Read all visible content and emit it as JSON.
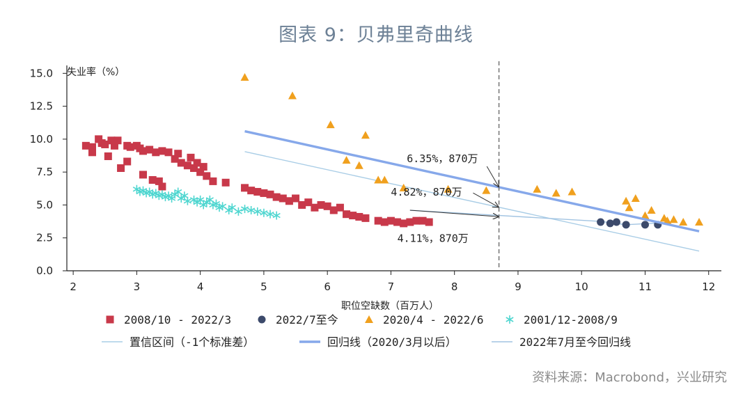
{
  "title": "图表 9：贝弗里奇曲线",
  "source": "资料来源：Macrobond，兴业研究",
  "colors": {
    "series_2008": "#c8394a",
    "series_2022_7": "#3c4a6b",
    "series_2020": "#f0a01e",
    "series_2001": "#4fd6d0",
    "regression": "#86a8ea",
    "conf_band": "#a9cde6",
    "current": "#a2c4e2",
    "vline": "#7a7a7a"
  },
  "chart_data": {
    "type": "scatter",
    "title": "图表 9：贝弗里奇曲线",
    "xlabel": "职位空缺数（百万人）",
    "ylabel": "失业率（%）",
    "xlim": [
      1.9,
      12.2
    ],
    "ylim": [
      0,
      15.6
    ],
    "xticks": [
      2,
      3,
      4,
      5,
      6,
      7,
      8,
      9,
      10,
      11,
      12
    ],
    "yticks": [
      0.0,
      2.5,
      5.0,
      7.5,
      10.0,
      12.5,
      15.0
    ],
    "xtick_labels": [
      "2",
      "3",
      "4",
      "5",
      "6",
      "7",
      "8",
      "9",
      "10",
      "11",
      "12"
    ],
    "ytick_labels": [
      "0.0",
      "2.5",
      "5.0",
      "7.5",
      "10.0",
      "12.5",
      "15.0"
    ],
    "grid": false,
    "legend_position": "bottom",
    "series": [
      {
        "name": "2008/10 - 2022/3",
        "marker": "square",
        "points": [
          [
            2.2,
            9.5
          ],
          [
            2.3,
            9.4
          ],
          [
            2.3,
            9.0
          ],
          [
            2.4,
            10.0
          ],
          [
            2.45,
            9.7
          ],
          [
            2.5,
            9.6
          ],
          [
            2.55,
            8.7
          ],
          [
            2.6,
            9.9
          ],
          [
            2.65,
            9.5
          ],
          [
            2.7,
            9.9
          ],
          [
            2.75,
            7.8
          ],
          [
            2.85,
            8.3
          ],
          [
            2.85,
            9.5
          ],
          [
            2.9,
            9.4
          ],
          [
            3.0,
            9.5
          ],
          [
            3.05,
            9.3
          ],
          [
            3.1,
            9.1
          ],
          [
            3.1,
            7.3
          ],
          [
            3.2,
            9.2
          ],
          [
            3.25,
            6.9
          ],
          [
            3.3,
            9.0
          ],
          [
            3.35,
            6.8
          ],
          [
            3.4,
            9.1
          ],
          [
            3.4,
            6.4
          ],
          [
            3.5,
            9.0
          ],
          [
            3.6,
            8.5
          ],
          [
            3.65,
            8.9
          ],
          [
            3.7,
            8.2
          ],
          [
            3.8,
            8.0
          ],
          [
            3.85,
            8.6
          ],
          [
            3.9,
            7.8
          ],
          [
            3.95,
            8.2
          ],
          [
            4.0,
            7.5
          ],
          [
            4.05,
            7.9
          ],
          [
            4.1,
            7.2
          ],
          [
            4.2,
            6.8
          ],
          [
            4.4,
            6.7
          ],
          [
            4.7,
            6.3
          ],
          [
            4.8,
            6.1
          ],
          [
            4.9,
            6.0
          ],
          [
            5.0,
            5.9
          ],
          [
            5.1,
            5.8
          ],
          [
            5.2,
            5.6
          ],
          [
            5.3,
            5.5
          ],
          [
            5.4,
            5.3
          ],
          [
            5.5,
            5.5
          ],
          [
            5.6,
            5.0
          ],
          [
            5.7,
            5.2
          ],
          [
            5.8,
            4.8
          ],
          [
            5.9,
            5.0
          ],
          [
            6.0,
            4.9
          ],
          [
            6.1,
            4.6
          ],
          [
            6.2,
            4.8
          ],
          [
            6.3,
            4.3
          ],
          [
            6.4,
            4.2
          ],
          [
            6.5,
            4.1
          ],
          [
            6.6,
            4.0
          ],
          [
            6.8,
            3.8
          ],
          [
            6.9,
            3.7
          ],
          [
            7.0,
            3.8
          ],
          [
            7.1,
            3.7
          ],
          [
            7.2,
            3.6
          ],
          [
            7.3,
            3.7
          ],
          [
            7.4,
            3.8
          ],
          [
            7.5,
            3.8
          ],
          [
            7.6,
            3.7
          ]
        ]
      },
      {
        "name": "2022/7至今",
        "marker": "circle",
        "points": [
          [
            10.3,
            3.7
          ],
          [
            10.45,
            3.6
          ],
          [
            10.55,
            3.7
          ],
          [
            10.7,
            3.5
          ],
          [
            11.0,
            3.5
          ],
          [
            11.2,
            3.5
          ]
        ]
      },
      {
        "name": "2020/4 - 2022/6",
        "marker": "triangle",
        "points": [
          [
            4.7,
            14.7
          ],
          [
            5.45,
            13.3
          ],
          [
            6.05,
            11.1
          ],
          [
            6.3,
            8.4
          ],
          [
            6.5,
            8.0
          ],
          [
            6.6,
            10.3
          ],
          [
            6.8,
            6.9
          ],
          [
            6.9,
            6.9
          ],
          [
            7.2,
            6.3
          ],
          [
            7.9,
            6.2
          ],
          [
            8.5,
            6.1
          ],
          [
            9.3,
            6.2
          ],
          [
            9.6,
            5.9
          ],
          [
            9.85,
            6.0
          ],
          [
            10.7,
            5.3
          ],
          [
            10.75,
            4.8
          ],
          [
            10.85,
            5.5
          ],
          [
            11.0,
            4.2
          ],
          [
            11.1,
            4.6
          ],
          [
            11.3,
            4.0
          ],
          [
            11.35,
            3.8
          ],
          [
            11.45,
            3.9
          ],
          [
            11.6,
            3.7
          ],
          [
            11.85,
            3.7
          ]
        ]
      },
      {
        "name": "2001/12-2008/9",
        "marker": "asterisk",
        "points": [
          [
            3.0,
            6.2
          ],
          [
            3.05,
            6.0
          ],
          [
            3.1,
            6.1
          ],
          [
            3.15,
            5.9
          ],
          [
            3.2,
            6.0
          ],
          [
            3.25,
            5.8
          ],
          [
            3.3,
            5.9
          ],
          [
            3.35,
            5.7
          ],
          [
            3.4,
            5.8
          ],
          [
            3.45,
            5.6
          ],
          [
            3.5,
            5.7
          ],
          [
            3.55,
            5.5
          ],
          [
            3.6,
            5.8
          ],
          [
            3.65,
            6.0
          ],
          [
            3.7,
            5.5
          ],
          [
            3.75,
            5.7
          ],
          [
            3.8,
            5.3
          ],
          [
            3.9,
            5.4
          ],
          [
            3.95,
            5.2
          ],
          [
            4.0,
            5.4
          ],
          [
            4.05,
            5.0
          ],
          [
            4.1,
            5.2
          ],
          [
            4.15,
            5.4
          ],
          [
            4.2,
            5.0
          ],
          [
            4.25,
            5.1
          ],
          [
            4.3,
            4.8
          ],
          [
            4.35,
            4.9
          ],
          [
            4.45,
            4.6
          ],
          [
            4.5,
            4.8
          ],
          [
            4.6,
            4.5
          ],
          [
            4.7,
            4.7
          ],
          [
            4.8,
            4.6
          ],
          [
            4.9,
            4.5
          ],
          [
            5.0,
            4.4
          ],
          [
            5.1,
            4.3
          ],
          [
            5.2,
            4.2
          ]
        ]
      }
    ],
    "lines": [
      {
        "name": "置信区间（-1个标准差）",
        "points": [
          [
            4.7,
            9.05
          ],
          [
            11.85,
            1.5
          ]
        ]
      },
      {
        "name": "回归线（2020/3月以后）",
        "points": [
          [
            4.7,
            10.6
          ],
          [
            11.85,
            3.0
          ]
        ]
      },
      {
        "name": "2022年7月至今回归线",
        "points": [
          [
            7.3,
            4.6
          ],
          [
            10.3,
            3.75
          ],
          [
            10.7,
            3.5
          ],
          [
            11.3,
            3.65
          ]
        ]
      }
    ],
    "vline_x": 8.7,
    "annotations": [
      {
        "text": "6.35%，870万",
        "x": 7.25,
        "y": 8.25,
        "arrow_to": [
          8.7,
          6.35
        ]
      },
      {
        "text": "4.82%，870万",
        "x": 7.0,
        "y": 5.7,
        "arrow_to": [
          8.7,
          4.82
        ]
      },
      {
        "text": "4.11%，870万",
        "x": 7.1,
        "y": 2.2,
        "arrow_to": [
          8.7,
          4.11
        ]
      }
    ]
  }
}
